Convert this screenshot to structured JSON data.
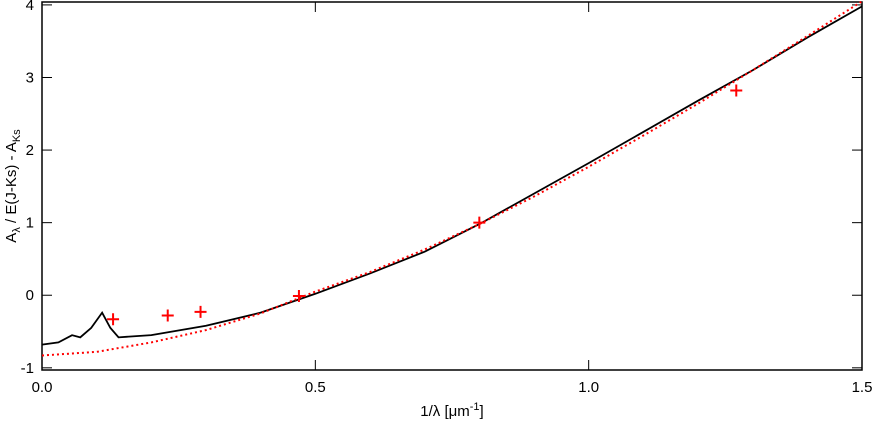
{
  "chart_data": {
    "type": "line",
    "ylabel": {
      "main": "A",
      "sub": "λ",
      "rest": " / E(J-Ks) - A",
      "sub2": "Ks"
    },
    "xlabel": {
      "main": "1/λ [μm",
      "sup": "-1",
      "end": "]"
    },
    "xlim": [
      0,
      1.5
    ],
    "ylim": [
      -1.03,
      4.04
    ],
    "xticks": [
      {
        "value": 0,
        "label": "0.0"
      },
      {
        "value": 0.5,
        "label": "0.5"
      },
      {
        "value": 1,
        "label": "1.0"
      },
      {
        "value": 1.5,
        "label": "1.5"
      }
    ],
    "yticks": [
      -1,
      0,
      1,
      2,
      3,
      4
    ],
    "series": [
      {
        "color": "#000000",
        "style": "solid",
        "x": [
          0,
          0.03,
          0.055,
          0.07,
          0.09,
          0.11,
          0.125,
          0.14,
          0.2,
          0.3,
          0.4,
          0.5,
          0.6,
          0.7,
          0.8,
          0.9,
          1.0,
          1.1,
          1.2,
          1.3,
          1.4,
          1.5
        ],
        "values": [
          -0.68,
          -0.65,
          -0.55,
          -0.58,
          -0.45,
          -0.24,
          -0.45,
          -0.58,
          -0.55,
          -0.42,
          -0.24,
          0.02,
          0.3,
          0.6,
          0.98,
          1.4,
          1.82,
          2.25,
          2.68,
          3.1,
          3.55,
          3.98
        ]
      },
      {
        "color": "#ff0000",
        "style": "dotted",
        "x": [
          0,
          0.1,
          0.2,
          0.3,
          0.4,
          0.5,
          0.6,
          0.7,
          0.8,
          0.9,
          1.0,
          1.1,
          1.2,
          1.3,
          1.4,
          1.5
        ],
        "values": [
          -0.83,
          -0.78,
          -0.65,
          -0.48,
          -0.25,
          0.05,
          0.32,
          0.63,
          0.98,
          1.36,
          1.77,
          2.2,
          2.64,
          3.1,
          3.57,
          4.05
        ]
      },
      {
        "color": "#ff0000",
        "style": "plus",
        "x": [
          0.13,
          0.23,
          0.29,
          0.47,
          0.8,
          1.27
        ],
        "values": [
          -0.33,
          -0.28,
          -0.23,
          -0.01,
          1.0,
          2.82
        ]
      }
    ]
  }
}
